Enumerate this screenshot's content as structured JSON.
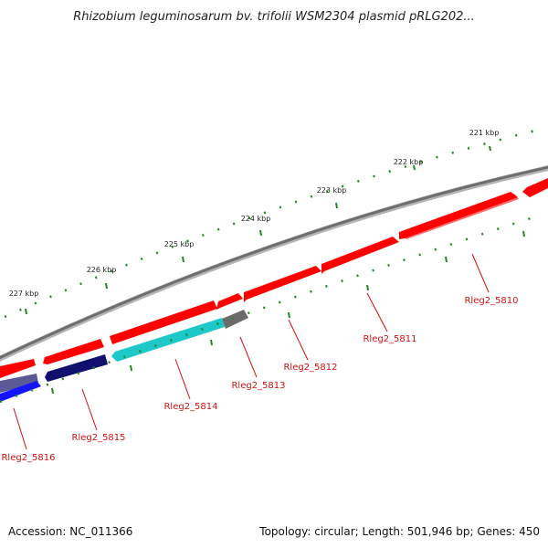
{
  "title": "Rhizobium leguminosarum bv. trifolii WSM2304 plasmid pRLG202...",
  "footer": {
    "accession": "Accession: NC_011366",
    "topology": "Topology: circular; Length: 501,946 bp; Genes: 450"
  },
  "scale": {
    "labels": [
      "221 kbp",
      "222 kbp",
      "223 kbp",
      "224 kbp",
      "225 kbp",
      "226 kbp",
      "227 kbp"
    ]
  },
  "genes": [
    {
      "name": "Rleg2_5810",
      "color": "#ff0000"
    },
    {
      "name": "Rleg2_5811",
      "color": "#ff0000"
    },
    {
      "name": "Rleg2_5812",
      "color": "#ff0000"
    },
    {
      "name": "Rleg2_5813",
      "color": "#6b6b6b"
    },
    {
      "name": "Rleg2_5814",
      "color": "#1ec8c8"
    },
    {
      "name": "Rleg2_5815",
      "color": "#10106e"
    },
    {
      "name": "Rleg2_5816",
      "color": "#1414ff"
    }
  ],
  "colors": {
    "backbone": "#808080",
    "scale_ticks": "#228822",
    "label_text": "#d01010",
    "forward_genes": "#ff0000"
  }
}
